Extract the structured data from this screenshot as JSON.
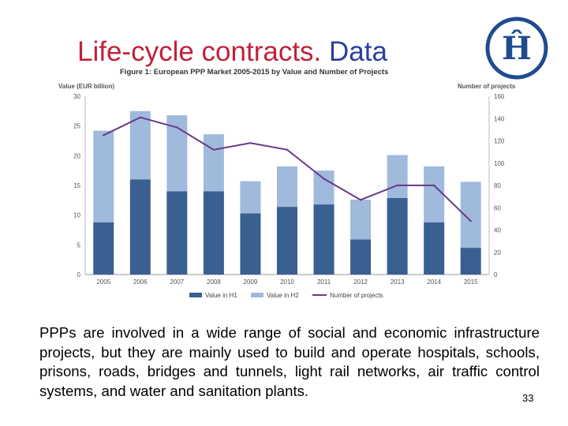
{
  "slide": {
    "title_part1": "Life-cycle contracts.",
    "title_part2": "Data",
    "body": "PPPs are involved in a wide range of social and economic infrastructure projects, but they are mainly used to build and operate hospitals, schools, prisons, roads, bridges and tunnels, light rail networks, air traffic control systems, and water and sanitation plants.",
    "page_number": "33",
    "logo_letter": "Ĥ"
  },
  "colors": {
    "title_red": "#c0213a",
    "title_blue": "#2a3f9b",
    "h1": "#3a5f91",
    "h2": "#9fbadc",
    "line": "#6a3a8c",
    "logo": "#1f4b8f"
  },
  "chart_data": {
    "type": "bar",
    "title": "Figure 1: European PPP Market 2005-2015 by Value and Number of Projects",
    "ylabel": "Value (EUR billion)",
    "y2label": "Number of projects",
    "categories": [
      "2005",
      "2006",
      "2007",
      "2008",
      "2009",
      "2010",
      "2011",
      "2012",
      "2013",
      "2014",
      "2015"
    ],
    "ylim": [
      0,
      30
    ],
    "yticks": [
      "0",
      "5",
      "10",
      "15",
      "20",
      "25",
      "30"
    ],
    "y2lim": [
      0,
      160
    ],
    "y2ticks": [
      "0",
      "20",
      "40",
      "60",
      "80",
      "100",
      "120",
      "140",
      "160"
    ],
    "series": [
      {
        "name": "Value in H1",
        "kind": "stacked-bar",
        "values": [
          8.8,
          16.0,
          14.0,
          14.0,
          10.3,
          11.4,
          11.8,
          5.9,
          12.9,
          8.8,
          4.5
        ]
      },
      {
        "name": "Value in H2",
        "kind": "stacked-bar",
        "values": [
          15.4,
          11.5,
          12.8,
          9.6,
          5.4,
          6.8,
          5.7,
          6.7,
          7.2,
          9.4,
          11.1
        ]
      },
      {
        "name": "Number of projects",
        "kind": "line",
        "axis": "right",
        "values": [
          125,
          141,
          132,
          112,
          118,
          112,
          86,
          67,
          80,
          80,
          48
        ]
      }
    ]
  }
}
